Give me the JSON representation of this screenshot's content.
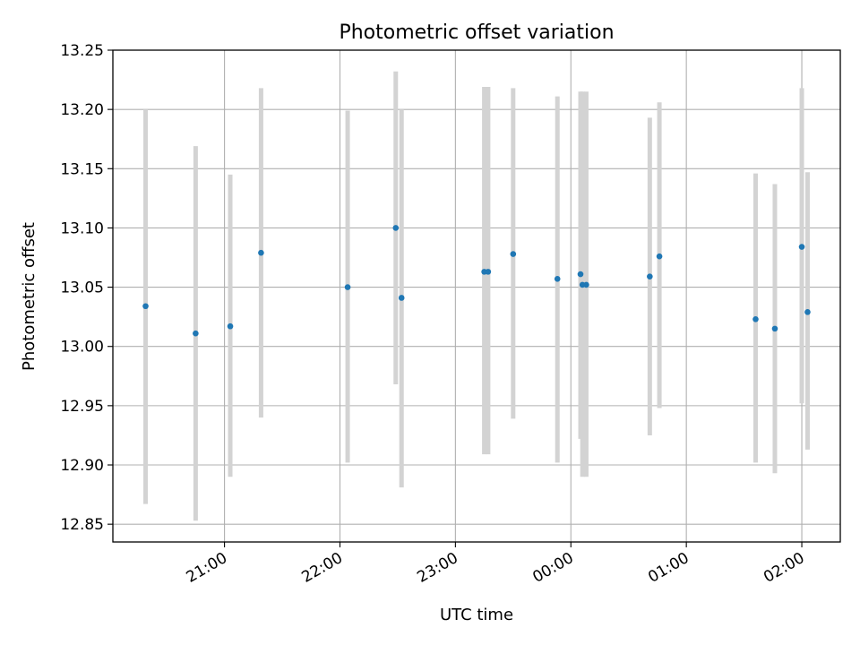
{
  "chart_data": {
    "type": "scatter",
    "title": "Photometric offset variation",
    "xlabel": "UTC time",
    "ylabel": "Photometric offset",
    "grid": true,
    "xlim": [
      "20:02",
      "02:20"
    ],
    "ylim": [
      12.835,
      13.25
    ],
    "x_ticks": [
      "21:00",
      "22:00",
      "23:00",
      "00:00",
      "01:00",
      "02:00"
    ],
    "y_ticks": [
      "12.85",
      "12.90",
      "12.95",
      "13.00",
      "13.05",
      "13.10",
      "13.15",
      "13.20",
      "13.25"
    ],
    "points": [
      {
        "x": "20:19",
        "y": 13.034,
        "ylow": 12.867,
        "yhigh": 13.2
      },
      {
        "x": "20:45",
        "y": 13.011,
        "ylow": 12.853,
        "yhigh": 13.169
      },
      {
        "x": "21:03",
        "y": 13.017,
        "ylow": 12.89,
        "yhigh": 13.145
      },
      {
        "x": "21:19",
        "y": 13.079,
        "ylow": 12.94,
        "yhigh": 13.218
      },
      {
        "x": "22:04",
        "y": 13.05,
        "ylow": 12.902,
        "yhigh": 13.199
      },
      {
        "x": "22:29",
        "y": 13.1,
        "ylow": 12.968,
        "yhigh": 13.232
      },
      {
        "x": "22:32",
        "y": 13.041,
        "ylow": 12.881,
        "yhigh": 13.2
      },
      {
        "x": "23:15",
        "y": 13.063,
        "ylow": 12.909,
        "yhigh": 13.219
      },
      {
        "x": "23:17",
        "y": 13.063,
        "ylow": 12.909,
        "yhigh": 13.219
      },
      {
        "x": "23:30",
        "y": 13.078,
        "ylow": 12.939,
        "yhigh": 13.218
      },
      {
        "x": "23:53",
        "y": 13.057,
        "ylow": 12.902,
        "yhigh": 13.211
      },
      {
        "x": "00:05",
        "y": 13.061,
        "ylow": 12.922,
        "yhigh": 13.215
      },
      {
        "x": "00:06",
        "y": 13.052,
        "ylow": 12.89,
        "yhigh": 13.215
      },
      {
        "x": "00:08",
        "y": 13.052,
        "ylow": 12.89,
        "yhigh": 13.215
      },
      {
        "x": "00:41",
        "y": 13.059,
        "ylow": 12.925,
        "yhigh": 13.193
      },
      {
        "x": "00:46",
        "y": 13.076,
        "ylow": 12.948,
        "yhigh": 13.206
      },
      {
        "x": "01:36",
        "y": 13.023,
        "ylow": 12.902,
        "yhigh": 13.146
      },
      {
        "x": "01:46",
        "y": 13.015,
        "ylow": 12.893,
        "yhigh": 13.137
      },
      {
        "x": "02:00",
        "y": 13.084,
        "ylow": 12.952,
        "yhigh": 13.218
      },
      {
        "x": "02:03",
        "y": 13.029,
        "ylow": 12.913,
        "yhigh": 13.147
      }
    ],
    "colors": {
      "point": "#1f77b4",
      "errorbar": "#d3d3d3",
      "grid": "#b0b0b0",
      "axes": "#000000"
    }
  }
}
